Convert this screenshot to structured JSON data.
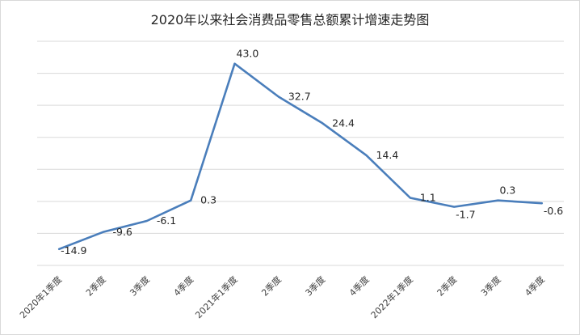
{
  "chart_data": {
    "type": "line",
    "title": "2020年以来社会消费品零售总额累计增速走势图",
    "categories": [
      "2020年1季度",
      "2季度",
      "3季度",
      "4季度",
      "2021年1季度",
      "2季度",
      "3季度",
      "4季度",
      "2022年1季度",
      "2季度",
      "3季度",
      "4季度"
    ],
    "series": [
      {
        "values": [
          -14.9,
          -9.6,
          -6.1,
          0.3,
          43.0,
          32.7,
          24.4,
          14.4,
          1.1,
          -1.7,
          0.3,
          -0.6
        ]
      }
    ],
    "data_labels": [
      "-14.9",
      "-9.6",
      "-6.1",
      "0.3",
      "43.0",
      "32.7",
      "24.4",
      "14.4",
      "1.1",
      "-1.7",
      "0.3",
      "-0.6"
    ],
    "ylim": [
      -20,
      50
    ],
    "y_gridlines": [
      -20,
      -10,
      0,
      10,
      20,
      30,
      40,
      50
    ],
    "grid": true,
    "y_axis_labels_shown": false,
    "legend": "none",
    "line_color": "#4a7ebb"
  }
}
